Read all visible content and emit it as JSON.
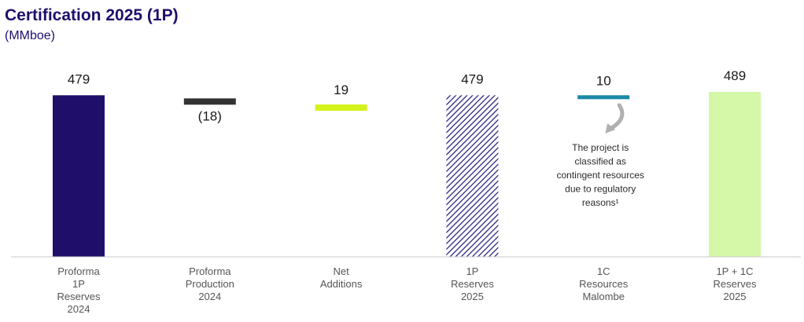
{
  "header": {
    "title": "Certification 2025 (1P)",
    "subtitle": "(MMboe)"
  },
  "chart_data": {
    "type": "bar",
    "subtype": "waterfall",
    "title": "Certification 2025 (1P)",
    "unit": "(MMboe)",
    "categories": [
      [
        "Proforma",
        "1P",
        "Reserves",
        "2024"
      ],
      [
        "Proforma",
        "Production",
        "2024"
      ],
      [
        "Net",
        "Additions"
      ],
      [
        "1P",
        "Reserves",
        "2025"
      ],
      [
        "1C",
        "Resources",
        "Malombe"
      ],
      [
        "1P + 1C",
        "Reserves",
        "2025"
      ]
    ],
    "values": [
      479,
      -18,
      19,
      479,
      10,
      489
    ],
    "data_labels": [
      "479",
      "(18)",
      "19",
      "479",
      "10",
      "489"
    ],
    "bar_kinds": [
      "total",
      "delta",
      "delta",
      "total",
      "delta",
      "total"
    ],
    "colors": [
      "#1f0f6b",
      "#333333",
      "#d4f21c",
      "#2e2580",
      "#1a8aa6",
      "#d4f7a8"
    ],
    "hatched": [
      false,
      false,
      false,
      true,
      false,
      false
    ],
    "annotation": {
      "lines": [
        "The project is",
        "classified as",
        "contingent resources",
        "due to regulatory",
        "reasons¹"
      ],
      "icon": "curved-arrow-down-icon"
    },
    "ylim": [
      0,
      500
    ],
    "grid": false
  }
}
